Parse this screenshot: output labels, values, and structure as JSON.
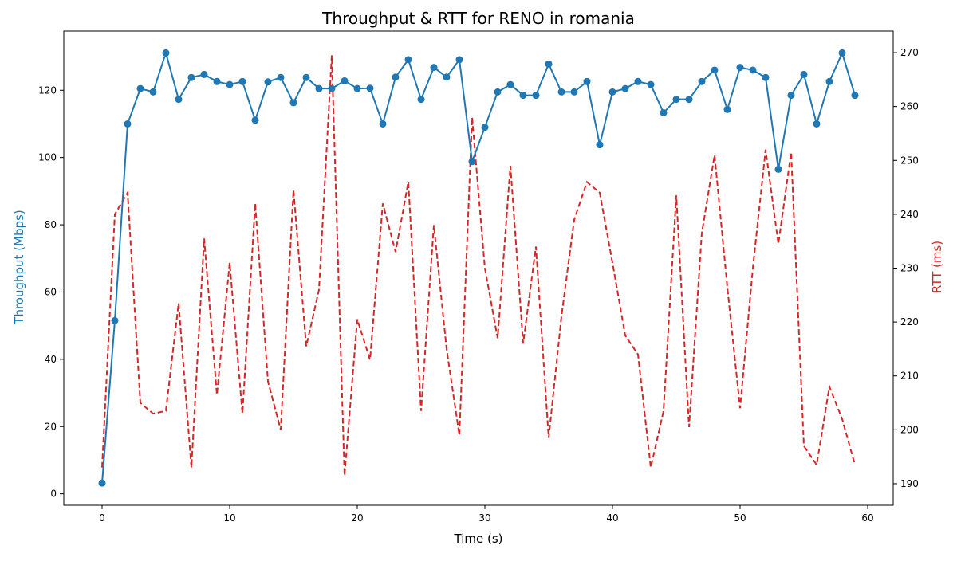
{
  "chart_data": {
    "type": "line",
    "title": "Throughput & RTT for RENO in romania",
    "xlabel": "Time (s)",
    "ylabel_left": "Throughput (Mbps)",
    "ylabel_right": "RTT (ms)",
    "xlim": [
      -3,
      62
    ],
    "ylim_left": [
      -3.4,
      137.6
    ],
    "ylim_right": [
      186,
      274
    ],
    "x_ticks": [
      0,
      10,
      20,
      30,
      40,
      50,
      60
    ],
    "y_left_ticks": [
      0,
      20,
      40,
      60,
      80,
      100,
      120
    ],
    "y_right_ticks": [
      190,
      200,
      210,
      220,
      230,
      240,
      250,
      260,
      270
    ],
    "grid": false,
    "series": [
      {
        "name": "Throughput (Mbps)",
        "axis": "left",
        "color": "#1f77b4",
        "style": "solid-with-markers",
        "x": [
          0,
          1,
          2,
          3,
          4,
          5,
          6,
          7,
          8,
          9,
          10,
          11,
          12,
          13,
          14,
          15,
          16,
          17,
          18,
          19,
          20,
          21,
          22,
          23,
          24,
          25,
          26,
          27,
          28,
          29,
          30,
          31,
          32,
          33,
          34,
          35,
          36,
          37,
          38,
          39,
          40,
          41,
          42,
          43,
          44,
          45,
          46,
          47,
          48,
          49,
          50,
          51,
          52,
          53,
          54,
          55,
          56,
          57,
          58,
          59
        ],
        "values": [
          3.2,
          51.5,
          110.0,
          120.5,
          119.5,
          131.1,
          117.3,
          123.8,
          124.7,
          122.6,
          121.7,
          122.6,
          111.1,
          122.5,
          123.8,
          116.3,
          123.8,
          120.5,
          120.5,
          122.8,
          120.5,
          120.6,
          110.0,
          123.9,
          129.1,
          117.3,
          126.8,
          123.9,
          129.1,
          98.8,
          109.0,
          119.5,
          121.7,
          118.5,
          118.5,
          127.8,
          119.5,
          119.5,
          122.6,
          103.8,
          119.5,
          120.5,
          122.6,
          121.7,
          113.3,
          117.3,
          117.3,
          122.6,
          126.0,
          114.3,
          126.8,
          126.0,
          123.8,
          96.5,
          118.5,
          124.7,
          110.0,
          122.6,
          131.1,
          118.5
        ]
      },
      {
        "name": "RTT (ms)",
        "axis": "right",
        "color": "#d62728",
        "style": "dashed",
        "x": [
          0,
          1,
          2,
          3,
          4,
          5,
          6,
          7,
          8,
          9,
          10,
          11,
          12,
          13,
          14,
          15,
          16,
          17,
          18,
          19,
          20,
          21,
          22,
          23,
          24,
          25,
          26,
          27,
          28,
          29,
          30,
          31,
          32,
          33,
          34,
          35,
          36,
          37,
          38,
          39,
          40,
          41,
          42,
          43,
          44,
          45,
          46,
          47,
          48,
          49,
          50,
          51,
          52,
          53,
          54,
          55,
          56,
          57,
          58,
          59
        ],
        "values": [
          193,
          240,
          244,
          205,
          203,
          203.5,
          223.5,
          193,
          235.5,
          206.5,
          231,
          203,
          242,
          209,
          200,
          244.5,
          215.5,
          226,
          269.5,
          191.5,
          220.5,
          213,
          242,
          233,
          246,
          203.5,
          238,
          215,
          199,
          258,
          230,
          217,
          249,
          216,
          234,
          198.5,
          221,
          239,
          246,
          244,
          231,
          217.5,
          214,
          193,
          203.5,
          243.5,
          200.5,
          236.5,
          251,
          226.5,
          204,
          230,
          252,
          234.5,
          251.5,
          197,
          193.5,
          208,
          202,
          193.5
        ]
      }
    ]
  }
}
